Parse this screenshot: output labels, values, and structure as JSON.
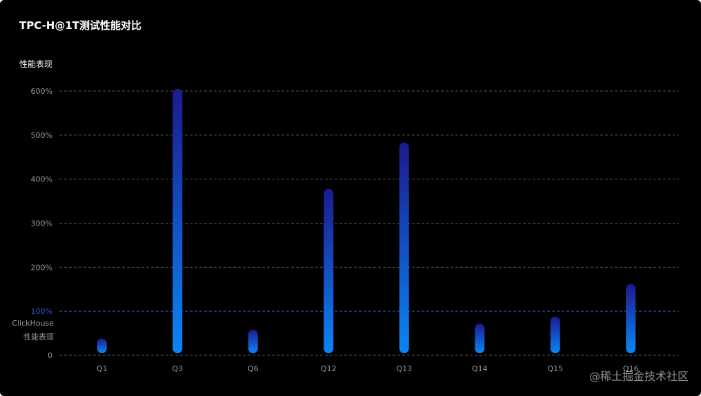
{
  "title": "TPC-H@1T测试性能对比",
  "watermark": "@稀土掘金技术社区",
  "colors": {
    "background": "#000000",
    "grid": "#5a5a5a",
    "baseline": "#2a56c6",
    "bar_top": "#1c1a8f",
    "bar_bottom": "#0a86f5",
    "tick_text": "#9a9a9a",
    "label_text": "#ffffff"
  },
  "chart_data": {
    "type": "bar",
    "ylabel": "性能表现",
    "categories": [
      "Q1",
      "Q3",
      "Q6",
      "Q12",
      "Q13",
      "Q14",
      "Q15",
      "Q16"
    ],
    "values": [
      38,
      605,
      58,
      378,
      483,
      72,
      88,
      162
    ],
    "ylim": [
      0,
      600
    ],
    "yticks": [
      {
        "value": 0,
        "label": "0"
      },
      {
        "value": 100,
        "label": "100%"
      },
      {
        "value": 200,
        "label": "200%"
      },
      {
        "value": 300,
        "label": "300%"
      },
      {
        "value": 400,
        "label": "400%"
      },
      {
        "value": 500,
        "label": "500%"
      },
      {
        "value": 600,
        "label": "600%"
      }
    ],
    "grid": true,
    "reference_line": {
      "value": 100,
      "label_lines": [
        "ClickHouse",
        "性能表现"
      ]
    }
  }
}
